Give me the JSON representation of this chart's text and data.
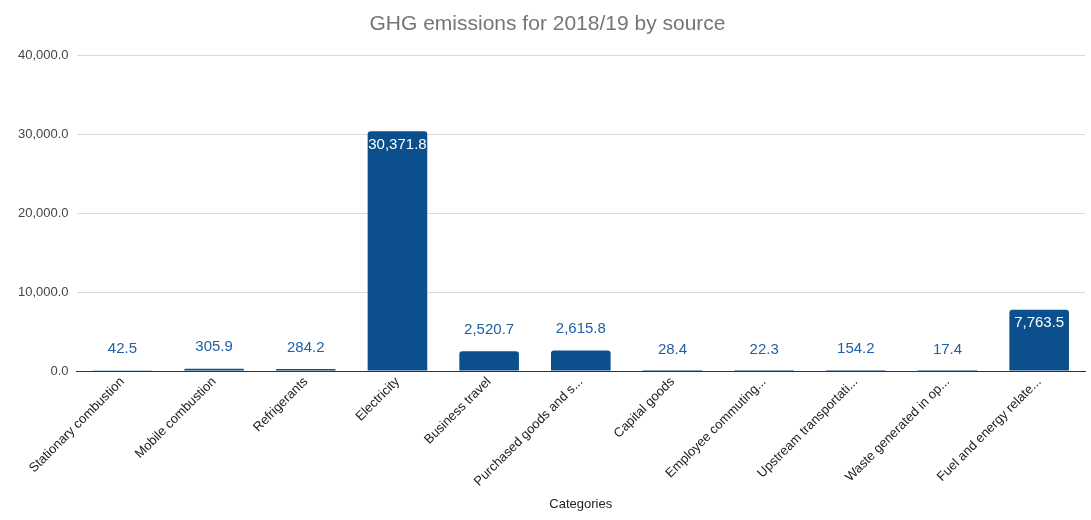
{
  "chart_data": {
    "type": "bar",
    "title": "GHG emissions for 2018/19 by source",
    "xlabel": "Categories",
    "categories": [
      "Stationary combustion",
      "Mobile combustion",
      "Refrigerants",
      "Electricity",
      "Business travel",
      "Purchased goods and s...",
      "Capital goods",
      "Employee commuting...",
      "Upstream transportati...",
      "Waste generated in op...",
      "Fuel and energy relate..."
    ],
    "values": [
      42.5,
      305.9,
      284.2,
      30371.8,
      2520.7,
      2615.8,
      28.4,
      22.3,
      154.2,
      17.4,
      7763.5
    ],
    "value_labels": [
      "42.5",
      "305.9",
      "284.2",
      "30,371.8",
      "2,520.7",
      "2,615.8",
      "28.4",
      "22.3",
      "154.2",
      "17.4",
      "7,763.5"
    ],
    "color": "#0b4f8c",
    "ylim": [
      0,
      40000
    ],
    "yticks": [
      {
        "value": 0,
        "label": "0.0"
      },
      {
        "value": 10000,
        "label": "10,000.0"
      },
      {
        "value": 20000,
        "label": "20,000.0"
      },
      {
        "value": 30000,
        "label": "30,000.0"
      },
      {
        "value": 40000,
        "label": "40,000.0"
      }
    ],
    "grid": "y"
  }
}
